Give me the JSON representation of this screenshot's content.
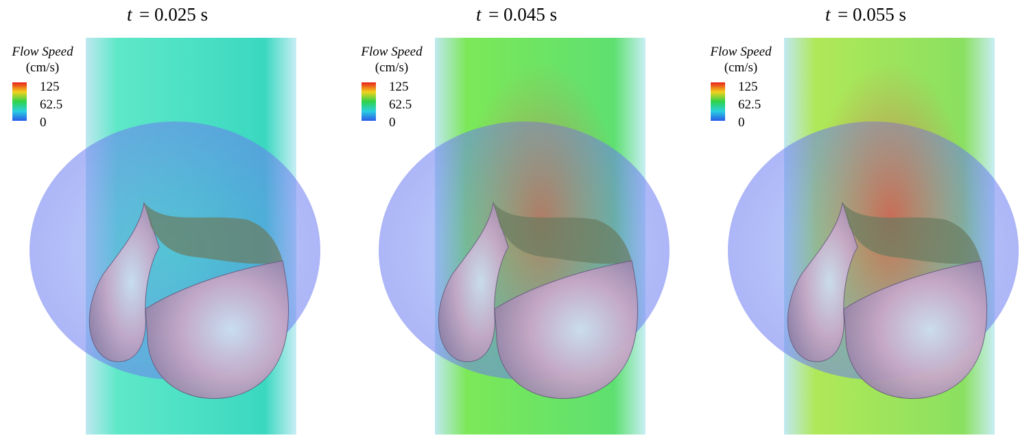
{
  "panels": [
    {
      "time_var": "t",
      "time_value": "= 0.025 s",
      "legend": {
        "title": "Flow Speed",
        "unit": "(cm/s)",
        "ticks": [
          "125",
          "62.5",
          "0"
        ]
      }
    },
    {
      "time_var": "t",
      "time_value": "= 0.045 s",
      "legend": {
        "title": "Flow Speed",
        "unit": "(cm/s)",
        "ticks": [
          "125",
          "62.5",
          "0"
        ]
      }
    },
    {
      "time_var": "t",
      "time_value": "= 0.055 s",
      "legend": {
        "title": "Flow Speed",
        "unit": "(cm/s)",
        "ticks": [
          "125",
          "62.5",
          "0"
        ]
      }
    }
  ]
}
